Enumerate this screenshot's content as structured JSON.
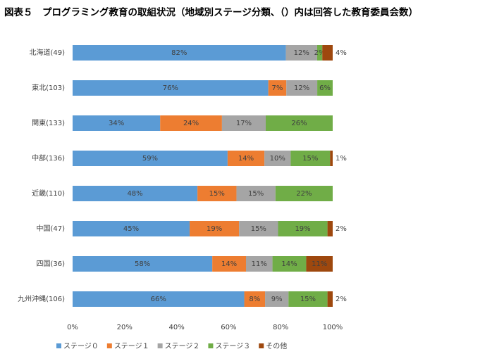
{
  "chart_data": {
    "type": "bar",
    "orientation": "horizontal",
    "stack": "percent",
    "title": "図表５　プログラミング教育の取組状況（地域別ステージ分類、（）内は回答した教育委員会数）",
    "categories": [
      "北海道(49)",
      "東北(103)",
      "関東(133)",
      "中部(136)",
      "近畿(110)",
      "中国(47)",
      "四国(36)",
      "九州沖縄(106)"
    ],
    "series": [
      {
        "name": "ステージ０",
        "color": "#5b9bd5",
        "values": [
          82,
          76,
          34,
          59,
          48,
          45,
          58,
          66
        ],
        "value_labels": [
          "82%",
          "76%",
          "34%",
          "59%",
          "48%",
          "45%",
          "58%",
          "66%"
        ]
      },
      {
        "name": "ステージ１",
        "color": "#ed7d31",
        "values": [
          0,
          7,
          24,
          14,
          15,
          19,
          14,
          8
        ],
        "value_labels": [
          null,
          "7%",
          "24%",
          "14%",
          "15%",
          "19%",
          "14%",
          "8%"
        ]
      },
      {
        "name": "ステージ２",
        "color": "#a5a5a5",
        "values": [
          12,
          12,
          17,
          10,
          15,
          15,
          11,
          9
        ],
        "value_labels": [
          "12%",
          "12%",
          "17%",
          "10%",
          "15%",
          "15%",
          "11%",
          "9%"
        ]
      },
      {
        "name": "ステージ３",
        "color": "#70ad47",
        "values": [
          2,
          6,
          26,
          15,
          22,
          19,
          14,
          15
        ],
        "value_labels": [
          "2%",
          "6%",
          "26%",
          "15%",
          "22%",
          "19%",
          "14%",
          "15%"
        ]
      },
      {
        "name": "その他",
        "color": "#9e480e",
        "values": [
          4,
          0,
          0,
          1,
          0,
          2,
          11,
          2
        ],
        "value_labels": [
          "4%",
          null,
          null,
          "1%",
          null,
          "2%",
          "11%",
          "2%"
        ]
      }
    ],
    "xlim": [
      0,
      100
    ],
    "xticks": [
      {
        "value": 0,
        "label": "0%"
      },
      {
        "value": 20,
        "label": "20%"
      },
      {
        "value": 40,
        "label": "40%"
      },
      {
        "value": 60,
        "label": "60%"
      },
      {
        "value": 80,
        "label": "80%"
      },
      {
        "value": 100,
        "label": "100%"
      }
    ],
    "legend": "bottom"
  }
}
